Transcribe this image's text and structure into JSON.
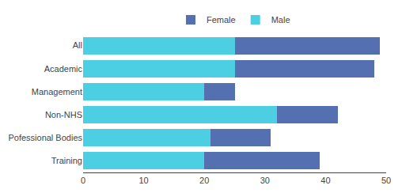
{
  "chart_data": {
    "type": "bar",
    "orientation": "horizontal",
    "stacked": true,
    "categories": [
      "All",
      "Academic",
      "Management",
      "Non-NHS",
      "Pofessional Bodies",
      "Training"
    ],
    "series": [
      {
        "name": "Male",
        "color": "#4DCFE3",
        "values": [
          25,
          25,
          20,
          32,
          21,
          20
        ]
      },
      {
        "name": "Female",
        "color": "#5470B0",
        "values": [
          24,
          23,
          5,
          10,
          10,
          19
        ]
      }
    ],
    "xlim": [
      0,
      50
    ],
    "xticks": [
      0,
      10,
      20,
      30,
      40,
      50
    ],
    "grid": false,
    "legend": "top"
  }
}
